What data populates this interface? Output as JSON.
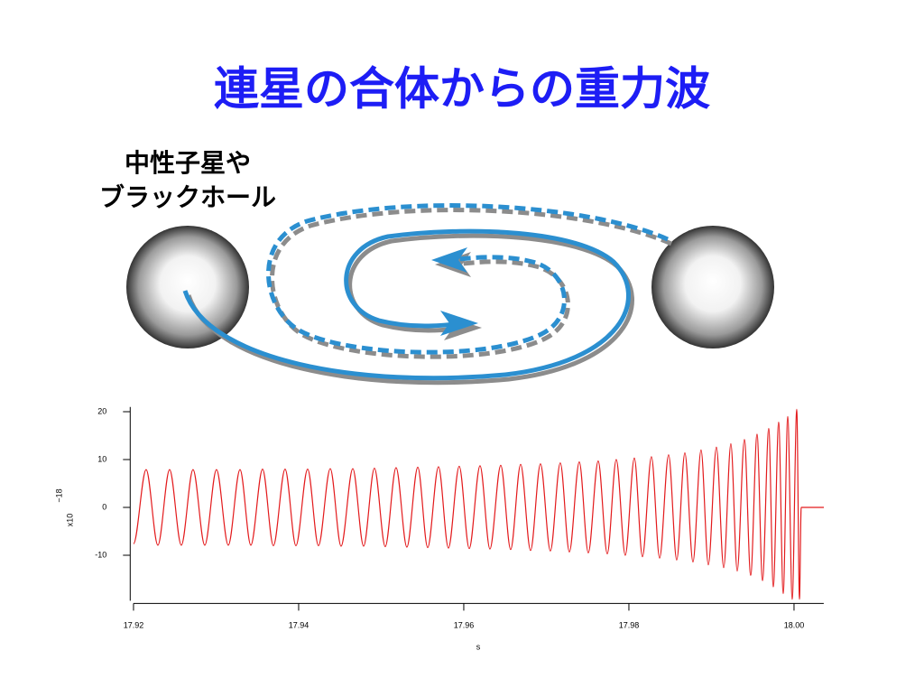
{
  "header": {
    "title": "連星の合体からの重力波"
  },
  "diagram": {
    "label": [
      "中性子星や",
      "ブラックホール"
    ]
  },
  "chart_data": {
    "type": "line",
    "xlabel": "s",
    "ylabel": "x10",
    "ylabel_exponent": "−18",
    "color": "#e31a1c",
    "x": [
      17.92,
      17.92153,
      17.92295,
      17.92437,
      17.92579,
      17.92721,
      17.92863,
      17.93005,
      17.93148,
      17.9329,
      17.93421,
      17.93563,
      17.93694,
      17.93836,
      17.93967,
      17.94109,
      17.9424,
      17.94383,
      17.94514,
      17.94656,
      17.94787,
      17.94918,
      17.95049,
      17.9518,
      17.95311,
      17.95443,
      17.95563,
      17.95694,
      17.95814,
      17.95945,
      17.96066,
      17.96197,
      17.96317,
      17.96448,
      17.96568,
      17.96689,
      17.96809,
      17.96929,
      17.97049,
      17.97169,
      17.97279,
      17.97399,
      17.97508,
      17.97628,
      17.97738,
      17.97847,
      17.97956,
      17.98066,
      17.98164,
      17.98273,
      17.98372,
      17.98481,
      17.98579,
      17.98678,
      17.98776,
      17.98874,
      17.98962,
      17.9906,
      17.99148,
      17.99235,
      17.99312,
      17.99399,
      17.99475,
      17.99552,
      17.99618,
      17.99694,
      17.99749,
      17.99814,
      17.99869,
      17.99924,
      17.99978,
      18.00033,
      18.00066,
      18.00087,
      18.00361
    ],
    "values": [
      -7.6,
      7.9,
      -7.9,
      7.9,
      -7.9,
      7.9,
      -7.9,
      7.9,
      -7.9,
      7.9,
      -7.9,
      8,
      -8,
      8,
      -8,
      8,
      -8,
      8.1,
      -8.1,
      8.1,
      -8.1,
      8.2,
      -8.2,
      8.3,
      -8.3,
      8.4,
      -8.4,
      8.5,
      -8.5,
      8.6,
      -8.6,
      8.7,
      -8.7,
      8.8,
      -8.8,
      9,
      -9,
      9.1,
      -9.1,
      9.3,
      -9.3,
      9.5,
      -9.5,
      9.7,
      -9.7,
      10,
      -10,
      10.3,
      -10.3,
      10.6,
      -10.6,
      11,
      -11,
      11.4,
      -11.4,
      12,
      -12,
      12.6,
      -12.6,
      13.3,
      -13.3,
      14.2,
      -14.2,
      15.3,
      -15.3,
      16.5,
      -16.6,
      17.8,
      -18,
      19,
      -19.2,
      20.5,
      -19.2,
      0,
      0
    ],
    "xlim": [
      17.9196,
      18.0036
    ],
    "xticks": [
      17.92,
      17.94,
      17.96,
      17.98,
      {
        "value": 18,
        "label": "18.00"
      }
    ],
    "ylim": [
      -19.5,
      21
    ],
    "yticks": [
      20,
      10,
      0,
      -10
    ]
  }
}
